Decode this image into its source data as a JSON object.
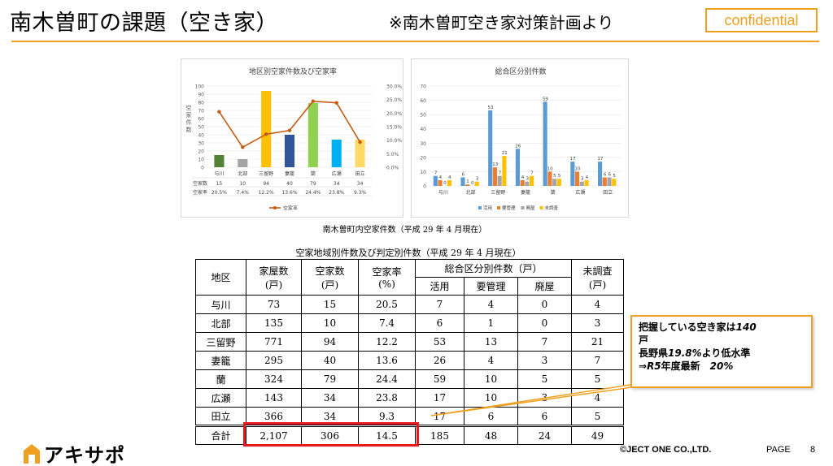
{
  "header": {
    "title": "南木曽町の課題（空き家）",
    "subtitle": "※南木曽町空き家対策計画より",
    "badge": "confidential"
  },
  "colors": {
    "accent": "#f0a020",
    "highlight_red": "#e8181c",
    "bar_palette": [
      "#548235",
      "#a5a5a5",
      "#ffc000",
      "#2f5597",
      "#92d050",
      "#00b0f0",
      "#ffd966"
    ],
    "line": "#c55a11",
    "cat_active": "#5b9bd5",
    "cat_manage": "#ed7d31",
    "cat_ruin": "#a5a5a5",
    "cat_unknown": "#ffc000"
  },
  "chart_data": [
    {
      "type": "bar",
      "title": "地区別空家件数及び空家率",
      "ylabel": "空家件数",
      "ylim": [
        0,
        100
      ],
      "y_ticks": [
        "0",
        "10",
        "20",
        "30",
        "40",
        "50",
        "60",
        "70",
        "80",
        "90",
        "100"
      ],
      "y2lim": [
        0,
        30
      ],
      "y2_ticks": [
        "0.0%",
        "5.0%",
        "10.0%",
        "15.0%",
        "20.0%",
        "25.0%",
        "30.0%"
      ],
      "categories": [
        "与川",
        "北部",
        "三留野",
        "妻籠",
        "蘭",
        "広瀬",
        "田立"
      ],
      "series": [
        {
          "name": "空家数",
          "type": "bar",
          "values": [
            15,
            10,
            94,
            40,
            79,
            34,
            34
          ]
        },
        {
          "name": "空家率",
          "type": "line",
          "axis": "right",
          "values": [
            20.5,
            7.4,
            12.2,
            13.6,
            24.4,
            23.8,
            9.3
          ]
        }
      ],
      "table_rows": [
        {
          "label": "空家数",
          "values": [
            "15",
            "10",
            "94",
            "40",
            "79",
            "34",
            "34"
          ]
        },
        {
          "label": "空家率",
          "values": [
            "20.5%",
            "7.4%",
            "12.2%",
            "13.6%",
            "24.4%",
            "23.8%",
            "9.3%"
          ]
        }
      ],
      "legend": [
        "空家率"
      ],
      "legend_position": "bottom"
    },
    {
      "type": "bar",
      "title": "総合区分別件数",
      "ylim": [
        0,
        70
      ],
      "y_ticks": [
        "0",
        "10",
        "20",
        "30",
        "40",
        "50",
        "60",
        "70"
      ],
      "categories": [
        "与川",
        "北部",
        "三留野",
        "妻籠",
        "蘭",
        "広瀬",
        "田立"
      ],
      "series": [
        {
          "name": "活用",
          "values": [
            7,
            6,
            53,
            26,
            59,
            17,
            17
          ]
        },
        {
          "name": "要管理",
          "values": [
            4,
            1,
            13,
            4,
            10,
            10,
            6
          ]
        },
        {
          "name": "廃屋",
          "values": [
            0,
            0,
            7,
            3,
            5,
            3,
            6
          ]
        },
        {
          "name": "未調査",
          "values": [
            4,
            3,
            21,
            7,
            5,
            4,
            5
          ]
        }
      ],
      "legend_position": "bottom"
    },
    {
      "type": "table",
      "caption": "南木曽町内空家件数（平成 29 年 4 月現在）",
      "title": "空家地域別件数及び判定別件数（平成 29 年 4 月現在）",
      "headers": {
        "district": "地区",
        "houses": "家屋数",
        "houses_unit": "(戸)",
        "vacant": "空家数",
        "vacant_unit": "(戸)",
        "rate": "空家率",
        "rate_unit": "(%)",
        "class_group": "総合区分別件数（戸）",
        "active": "活用",
        "manage": "要管理",
        "ruin": "廃屋",
        "unknown": "未調査",
        "unknown_unit": "(戸)"
      },
      "rows": [
        [
          "与川",
          "73",
          "15",
          "20.5",
          "7",
          "4",
          "0",
          "4"
        ],
        [
          "北部",
          "135",
          "10",
          "7.4",
          "6",
          "1",
          "0",
          "3"
        ],
        [
          "三留野",
          "771",
          "94",
          "12.2",
          "53",
          "13",
          "7",
          "21"
        ],
        [
          "妻籠",
          "295",
          "40",
          "13.6",
          "26",
          "4",
          "3",
          "7"
        ],
        [
          "蘭",
          "324",
          "79",
          "24.4",
          "59",
          "10",
          "5",
          "5"
        ],
        [
          "広瀬",
          "143",
          "34",
          "23.8",
          "17",
          "10",
          "3",
          "4"
        ],
        [
          "田立",
          "366",
          "34",
          "9.3",
          "17",
          "6",
          "6",
          "5"
        ]
      ],
      "total": [
        "合計",
        "2,107",
        "306",
        "14.5",
        "185",
        "48",
        "24",
        "49"
      ]
    }
  ],
  "callout": {
    "line1_a": "把握している空き家は",
    "line1_b": "140",
    "line1_c": "戸",
    "line2_a": "長野県",
    "line2_b": "19.8%",
    "line2_c": "より低水準",
    "line3_a": "⇒",
    "line3_b": "R5",
    "line3_c": "年度最新　",
    "line3_d": "20%"
  },
  "footer": {
    "logo_text": "アキサポ",
    "logo_icon": "house-icon",
    "copyright": "©JECT ONE CO.,LTD.",
    "page_label": "PAGE",
    "page_number": "8"
  }
}
